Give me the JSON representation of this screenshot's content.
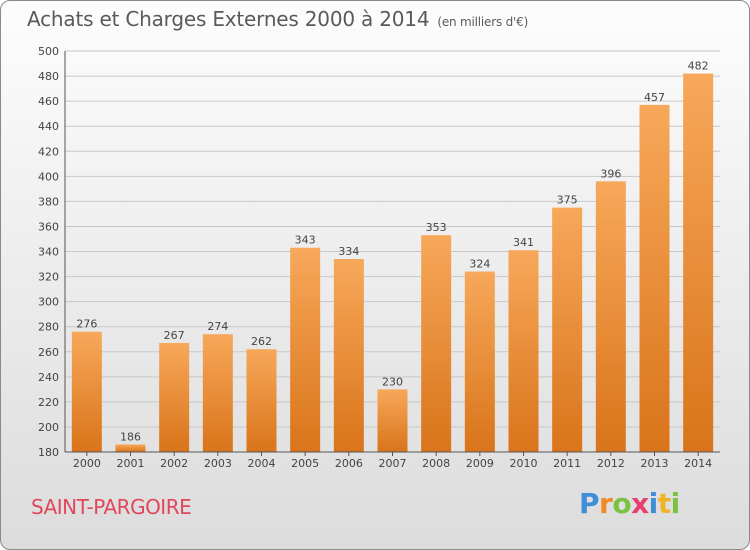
{
  "title": "Achats et Charges Externes 2000 à 2014",
  "subtitle": "(en milliers d'€)",
  "commune": "SAINT-PARGOIRE",
  "logo": {
    "letters": [
      "P",
      "r",
      "o",
      "x",
      "i",
      "t",
      "i"
    ],
    "colors": [
      "#3f8fd8",
      "#f08a24",
      "#7cc242",
      "#e83f6f",
      "#3f8fd8",
      "#f0b323",
      "#7cc242"
    ]
  },
  "colors": {
    "bar_top": "#f7a85a",
    "bar_bottom": "#d9741a",
    "grid": "#c8c8c8",
    "text": "#444444"
  },
  "chart_data": {
    "type": "bar",
    "title": "Achats et Charges Externes 2000 à 2014",
    "subtitle": "(en milliers d'€)",
    "xlabel": "",
    "ylabel": "",
    "categories": [
      "2000",
      "2001",
      "2002",
      "2003",
      "2004",
      "2005",
      "2006",
      "2007",
      "2008",
      "2009",
      "2010",
      "2011",
      "2012",
      "2013",
      "2014"
    ],
    "values": [
      276,
      186,
      267,
      274,
      262,
      343,
      334,
      230,
      353,
      324,
      341,
      375,
      396,
      457,
      482
    ],
    "ylim": [
      180,
      500
    ],
    "yticks": [
      180,
      200,
      220,
      240,
      260,
      280,
      300,
      320,
      340,
      360,
      380,
      400,
      420,
      440,
      460,
      480,
      500
    ],
    "grid": true,
    "legend": "none"
  }
}
